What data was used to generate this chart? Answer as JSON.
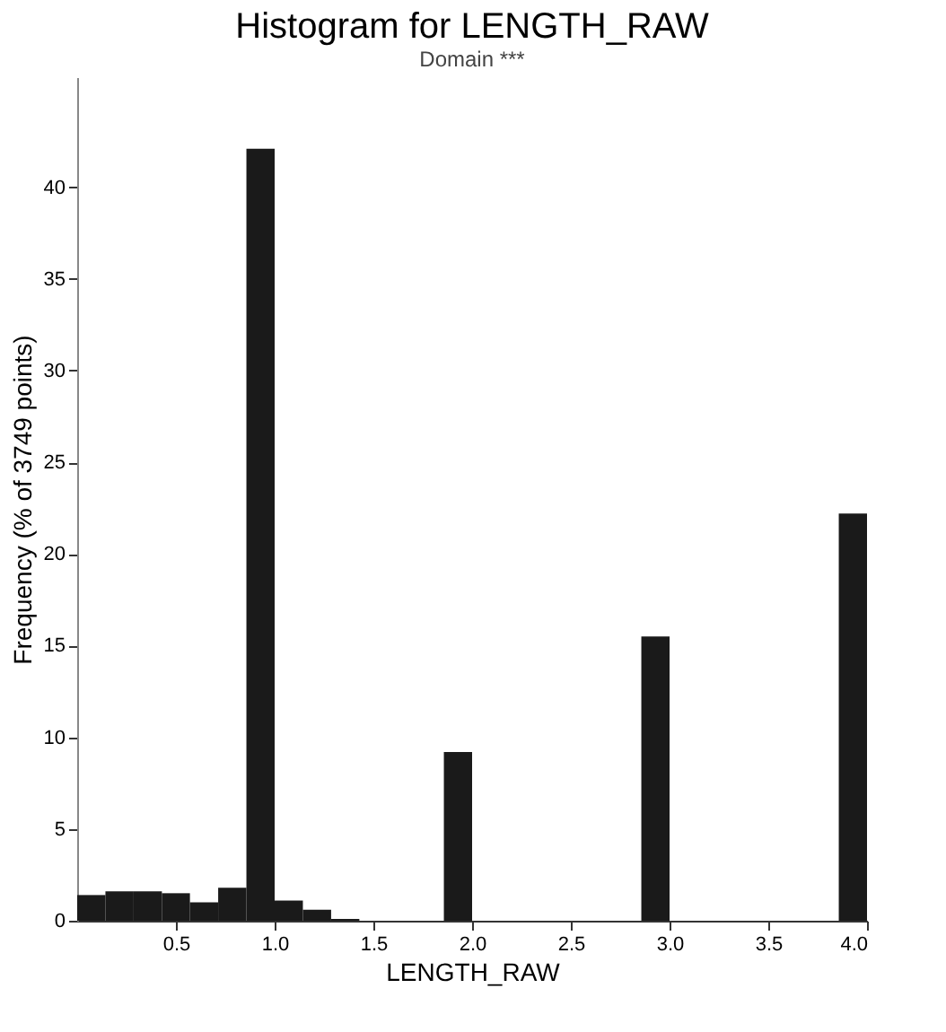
{
  "chart_data": {
    "type": "histogram",
    "title": "Histogram for LENGTH_RAW",
    "subtitle": "Domain ***",
    "xlabel": "LENGTH_RAW",
    "ylabel": "Frequency (% of 3749 points)",
    "bins": [
      0,
      0.143,
      0.286,
      0.429,
      0.571,
      0.714,
      0.857,
      1.0,
      1.143,
      1.286,
      1.429,
      1.571,
      1.714,
      1.857,
      2.0,
      2.143,
      2.286,
      2.429,
      2.571,
      2.714,
      2.857,
      3.0,
      3.143,
      3.286,
      3.429,
      3.571,
      3.714,
      3.857,
      4.0
    ],
    "values": [
      1.4,
      1.6,
      1.6,
      1.5,
      1.0,
      1.8,
      42.1,
      1.1,
      0.6,
      0.1,
      0,
      0,
      0,
      9.2,
      0,
      0,
      0,
      0,
      0,
      0,
      15.5,
      0,
      0,
      0,
      0,
      0,
      0,
      22.2
    ],
    "color": "#1a1a1a",
    "xlim": [
      0,
      4.0
    ],
    "ylim": [
      0,
      46
    ],
    "xticks": [
      0.5,
      {
        "value": 1.0,
        "label": "1.0"
      },
      1.5,
      {
        "value": 2.0,
        "label": "2.0"
      },
      2.5,
      {
        "value": 3.0,
        "label": "3.0"
      },
      3.5,
      {
        "value": 4.0,
        "label": "4.0"
      }
    ],
    "yticks": [
      0,
      5,
      10,
      15,
      20,
      25,
      30,
      35,
      40
    ],
    "grid": false
  }
}
